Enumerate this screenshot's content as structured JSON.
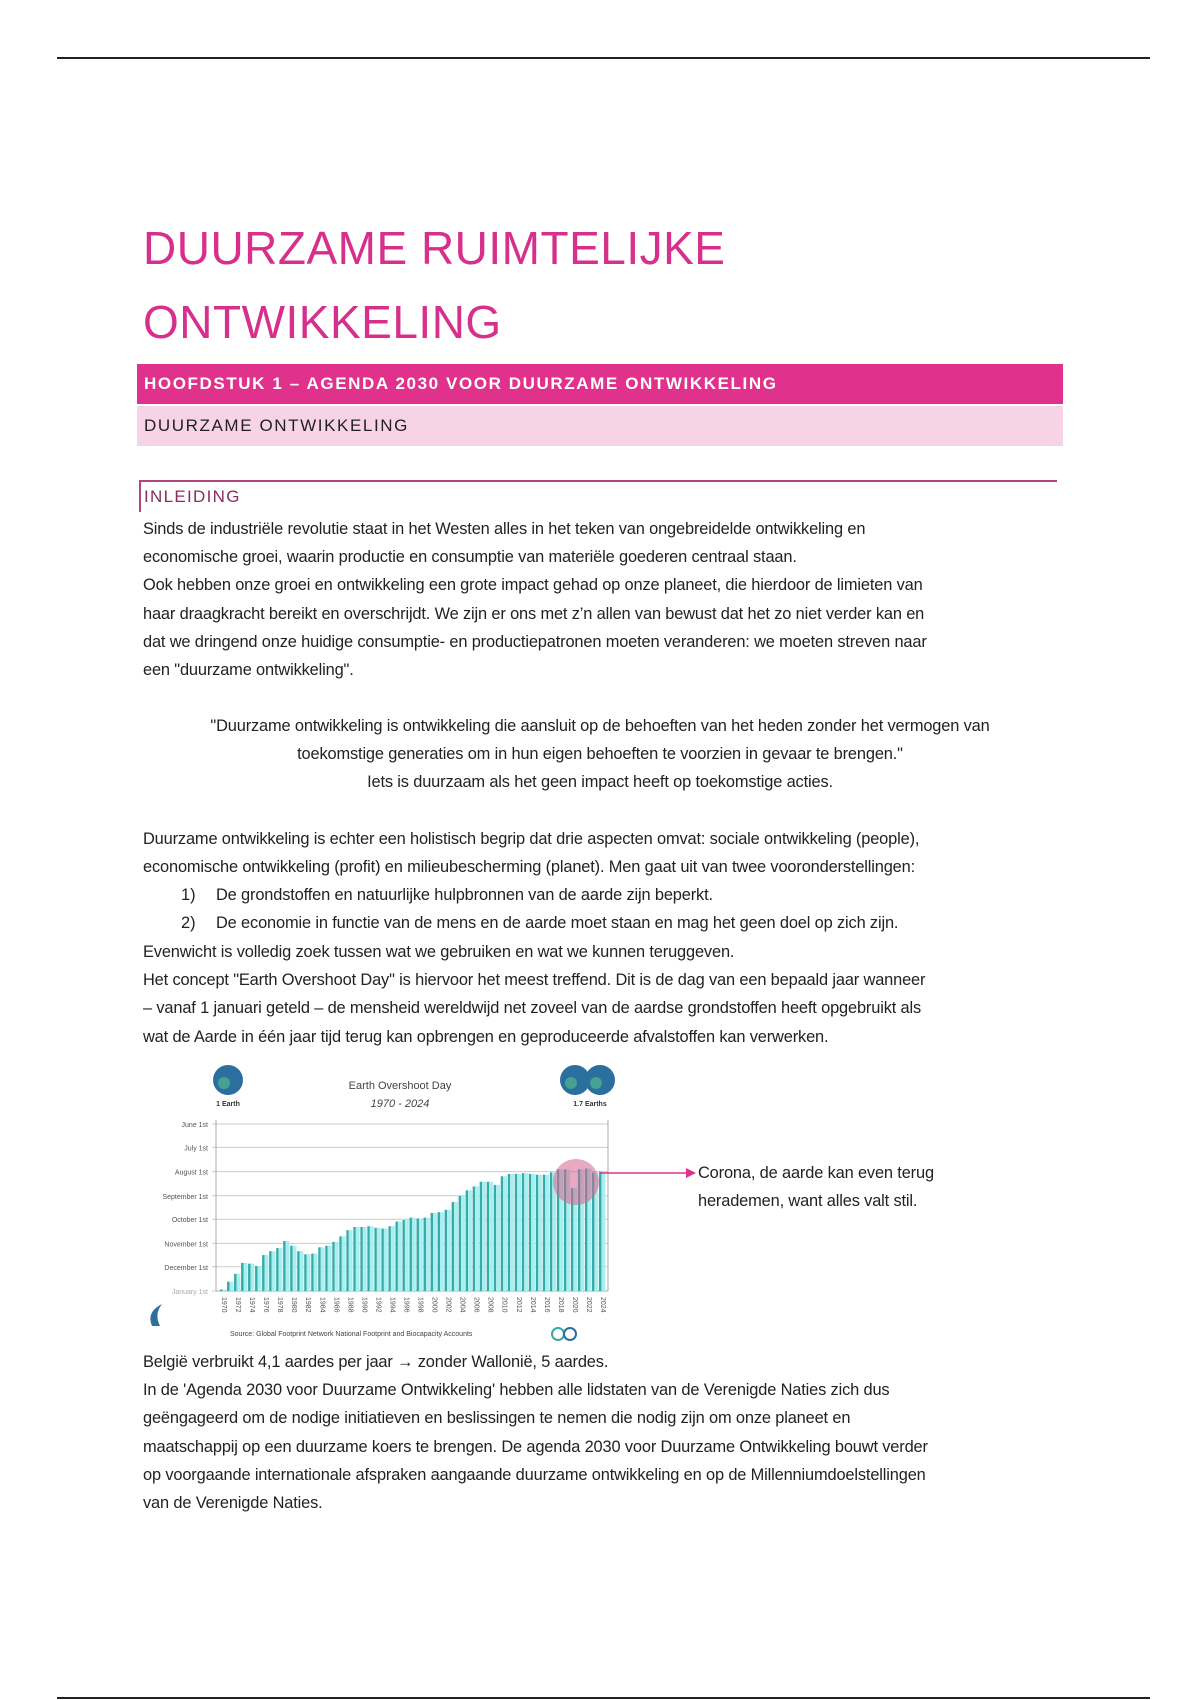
{
  "title_lines": [
    "DUURZAME RUIMTELIJKE",
    "ONTWIKKELING"
  ],
  "chapter_heading": "HOOFDSTUK 1 – AGENDA 2030 VOOR DUURZAME ONTWIKKELING",
  "section_heading": "DUURZAME ONTWIKKELING",
  "subsection_heading": "INLEIDING",
  "intro_lines": [
    "Sinds de industriële revolutie staat in het Westen alles in het teken van ongebreidelde ontwikkeling en",
    "economische groei, waarin productie en consumptie van materiële goederen centraal staan.",
    "Ook hebben onze groei en ontwikkeling een grote impact gehad op onze planeet, die hierdoor de limieten van",
    "haar draagkracht bereikt en overschrijdt. We zijn er ons met z’n allen van bewust dat het zo niet verder kan en",
    "dat we dringend onze huidige consumptie- en productiepatronen moeten veranderen: we moeten streven naar",
    "een \"duurzame ontwikkeling\"."
  ],
  "quote_lines": [
    "\"Duurzame ontwikkeling is ontwikkeling die aansluit op de behoeften van het heden zonder het vermogen van",
    "toekomstige generaties om in hun eigen behoeften te voorzien in gevaar te brengen.\"",
    "Iets is duurzaam als het geen impact heeft op toekomstige acties."
  ],
  "holistic_lines": [
    "Duurzame ontwikkeling is echter een holistisch begrip dat drie aspecten omvat: sociale ontwikkeling (people),",
    "economische ontwikkeling (profit) en milieubescherming (planet). Men gaat uit van twee vooronderstellingen:"
  ],
  "list": [
    {
      "num": "1)",
      "text": "De grondstoffen en natuurlijke hulpbronnen van de aarde zijn beperkt."
    },
    {
      "num": "2)",
      "text": "De economie in functie van de mens en de aarde moet staan en mag het geen doel op zich zijn."
    }
  ],
  "overshoot_lines": [
    "Evenwicht is volledig zoek tussen wat we gebruiken en wat we kunnen teruggeven.",
    "Het concept \"Earth Overshoot Day\" is hiervoor het meest treffend. Dit is de dag van een bepaald jaar wanneer",
    "– vanaf 1 januari geteld – de mensheid wereldwijd net zoveel van de aardse grondstoffen heeft opgebruikt als",
    "wat de Aarde in één jaar tijd terug kan opbrengen en geproduceerde afvalstoffen kan verwerken."
  ],
  "chart_annotation_lines": [
    "Corona, de aarde kan even terug",
    "herademen, want alles valt stil."
  ],
  "closing_lines": [
    "België verbruikt 4,1 aardes per jaar → zonder Wallonië, 5 aardes.",
    "In de 'Agenda 2030 voor Duurzame Ontwikkeling' hebben alle lidstaten van de Verenigde Naties zich dus",
    "geëngageerd om de nodige initiatieven en beslissingen te nemen die nodig zijn om onze planeet en",
    "maatschappij op een duurzame koers te brengen. De agenda 2030 voor Duurzame Ontwikkeling bouwt verder",
    "op voorgaande internationale afspraken aangaande duurzame ontwikkeling en op de Millenniumdoelstellingen",
    "van de Verenigde Naties."
  ],
  "colors": {
    "accent": "#e0318c",
    "accent_light": "#f6d3e6",
    "title": "#d62f8c",
    "bar": "#3aa9a9",
    "highlight": "#d6628f"
  },
  "chart_data": {
    "type": "bar",
    "title": "Earth Overshoot Day",
    "subtitle": "1970 - 2024",
    "left_globe_label": "1 Earth",
    "right_globe_label": "1.7 Earths",
    "source": "Source: Global Footprint Network National Footprint and Biocapacity Accounts",
    "y_ticks": [
      "June 1st",
      "July 1st",
      "August 1st",
      "September 1st",
      "October 1st",
      "November 1st",
      "December 1st",
      "January 1st"
    ],
    "ylim": [
      "June 1st",
      "January 1st"
    ],
    "x_tick_labels": [
      "1970",
      "1972",
      "1974",
      "1976",
      "1978",
      "1980",
      "1982",
      "1984",
      "1986",
      "1988",
      "1990",
      "1992",
      "1994",
      "1996",
      "1998",
      "2000",
      "2002",
      "2004",
      "2006",
      "2008",
      "2010",
      "2012",
      "2014",
      "2016",
      "2018",
      "2020",
      "2022",
      "2024"
    ],
    "years": [
      1970,
      1971,
      1972,
      1973,
      1974,
      1975,
      1976,
      1977,
      1978,
      1979,
      1980,
      1981,
      1982,
      1983,
      1984,
      1985,
      1986,
      1987,
      1988,
      1989,
      1990,
      1991,
      1992,
      1993,
      1994,
      1995,
      1996,
      1997,
      1998,
      1999,
      2000,
      2001,
      2002,
      2003,
      2004,
      2005,
      2006,
      2007,
      2008,
      2009,
      2010,
      2011,
      2012,
      2013,
      2014,
      2015,
      2016,
      2017,
      2018,
      2019,
      2020,
      2021,
      2022,
      2023,
      2024
    ],
    "overshoot_dates": [
      "12-30",
      "12-20",
      "12-10",
      "11-26",
      "11-27",
      "11-30",
      "11-16",
      "11-11",
      "11-07",
      "10-29",
      "11-04",
      "11-11",
      "11-15",
      "11-14",
      "11-06",
      "11-04",
      "10-30",
      "10-23",
      "10-15",
      "10-11",
      "10-11",
      "10-10",
      "10-12",
      "10-13",
      "10-10",
      "10-04",
      "10-02",
      "09-29",
      "09-30",
      "09-29",
      "09-23",
      "09-22",
      "09-19",
      "09-09",
      "09-01",
      "08-25",
      "08-20",
      "08-14",
      "08-14",
      "08-18",
      "08-07",
      "08-04",
      "08-04",
      "08-03",
      "08-04",
      "08-05",
      "08-05",
      "08-02",
      "07-29",
      "07-29",
      "08-22",
      "07-29",
      "07-28",
      "08-02",
      "08-01"
    ],
    "highlight_years": [
      2019,
      2020,
      2021
    ],
    "grid": true
  }
}
